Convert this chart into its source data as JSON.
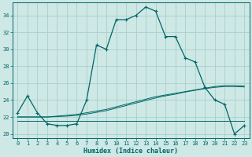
{
  "xlabel": "Humidex (Indice chaleur)",
  "xlim": [
    -0.5,
    23.5
  ],
  "ylim": [
    19.5,
    35.5
  ],
  "yticks": [
    20,
    22,
    24,
    26,
    28,
    30,
    32,
    34
  ],
  "xticks": [
    0,
    1,
    2,
    3,
    4,
    5,
    6,
    7,
    8,
    9,
    10,
    11,
    12,
    13,
    14,
    15,
    16,
    17,
    18,
    19,
    20,
    21,
    22,
    23
  ],
  "background_color": "#cde8e5",
  "grid_color": "#aacfcc",
  "line_color": "#006666",
  "curve_main_x": [
    0,
    1,
    2,
    3,
    4,
    5,
    6,
    7,
    8,
    9,
    10,
    11,
    12,
    13,
    14,
    15,
    16,
    17,
    18,
    19,
    20,
    21,
    22,
    23
  ],
  "curve_main_y": [
    22.5,
    24.5,
    22.5,
    21.2,
    21.0,
    21.0,
    21.2,
    24.0,
    30.5,
    30.0,
    33.5,
    33.5,
    34.0,
    35.0,
    34.5,
    31.5,
    31.5,
    29.0,
    28.5,
    25.5,
    24.0,
    23.5,
    20.0,
    21.0
  ],
  "line_flat_y": [
    21.5,
    21.5,
    21.5,
    21.5,
    21.5,
    21.5,
    21.5,
    21.5,
    21.5,
    21.5,
    21.5,
    21.5,
    21.5,
    21.5,
    21.5,
    21.5,
    21.5,
    21.5,
    21.5,
    21.5,
    21.5,
    21.5,
    21.5,
    21.5
  ],
  "line_diag1_y": [
    22.0,
    22.0,
    22.0,
    22.0,
    22.1,
    22.2,
    22.3,
    22.5,
    22.7,
    22.9,
    23.2,
    23.5,
    23.8,
    24.1,
    24.4,
    24.6,
    24.8,
    25.0,
    25.2,
    25.4,
    25.6,
    25.7,
    25.7,
    25.65
  ],
  "line_diag2_y": [
    22.0,
    22.0,
    22.0,
    22.0,
    22.05,
    22.1,
    22.2,
    22.35,
    22.55,
    22.75,
    23.05,
    23.35,
    23.65,
    23.95,
    24.25,
    24.5,
    24.7,
    24.95,
    25.15,
    25.35,
    25.5,
    25.6,
    25.6,
    25.55
  ]
}
